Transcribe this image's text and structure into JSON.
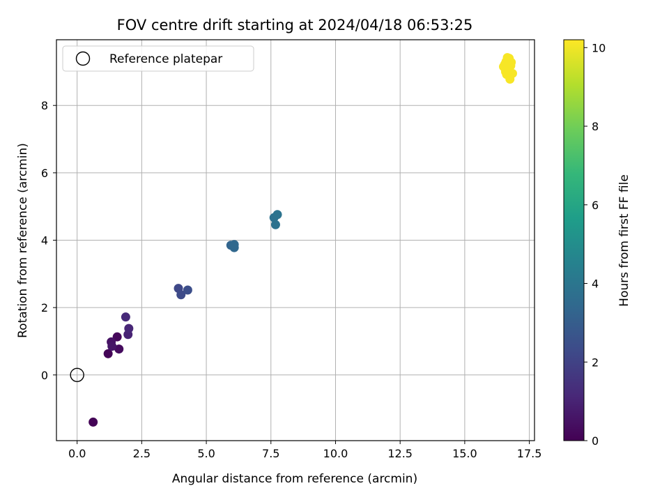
{
  "chart_data": {
    "type": "scatter",
    "title": "FOV centre drift starting at 2024/04/18 06:53:25",
    "xlabel": "Angular distance from reference (arcmin)",
    "ylabel": "Rotation from reference (arcmin)",
    "xlim": [
      -0.8,
      17.7
    ],
    "ylim": [
      -1.95,
      9.95
    ],
    "xticks": [
      0.0,
      2.5,
      5.0,
      7.5,
      10.0,
      12.5,
      15.0,
      17.5
    ],
    "xtick_labels": [
      "0.0",
      "2.5",
      "5.0",
      "7.5",
      "10.0",
      "12.5",
      "15.0",
      "17.5"
    ],
    "yticks": [
      0,
      2,
      4,
      6,
      8
    ],
    "ytick_labels": [
      "0",
      "2",
      "4",
      "6",
      "8"
    ],
    "grid": true,
    "legend": {
      "placement": "top-left",
      "entries": [
        {
          "label": "Reference platepar",
          "marker": "open-circle"
        }
      ]
    },
    "reference_point": {
      "x": 0.0,
      "y": 0.0
    },
    "colorbar": {
      "label": "Hours from first FF file",
      "colormap": "viridis",
      "range": [
        0,
        10.2
      ],
      "ticks": [
        0,
        2,
        4,
        6,
        8,
        10
      ],
      "tick_labels": [
        "0",
        "2",
        "4",
        "6",
        "8",
        "10"
      ]
    },
    "points": [
      {
        "x": 0.62,
        "y": -1.4,
        "c": 0.05
      },
      {
        "x": 1.2,
        "y": 0.63,
        "c": 0.1
      },
      {
        "x": 1.55,
        "y": 1.13,
        "c": 0.2
      },
      {
        "x": 1.62,
        "y": 0.77,
        "c": 0.3
      },
      {
        "x": 1.32,
        "y": 0.98,
        "c": 0.5
      },
      {
        "x": 1.35,
        "y": 0.85,
        "c": 0.6
      },
      {
        "x": 1.97,
        "y": 1.2,
        "c": 1.0
      },
      {
        "x": 2.0,
        "y": 1.38,
        "c": 1.1
      },
      {
        "x": 1.88,
        "y": 1.72,
        "c": 1.2
      },
      {
        "x": 3.92,
        "y": 2.57,
        "c": 2.2
      },
      {
        "x": 4.02,
        "y": 2.38,
        "c": 2.3
      },
      {
        "x": 4.28,
        "y": 2.52,
        "c": 2.4
      },
      {
        "x": 5.95,
        "y": 3.85,
        "c": 3.3
      },
      {
        "x": 6.08,
        "y": 3.78,
        "c": 3.4
      },
      {
        "x": 6.08,
        "y": 3.87,
        "c": 3.45
      },
      {
        "x": 7.62,
        "y": 4.67,
        "c": 3.8
      },
      {
        "x": 7.68,
        "y": 4.46,
        "c": 3.85
      },
      {
        "x": 7.75,
        "y": 4.76,
        "c": 3.9
      },
      {
        "x": 16.5,
        "y": 9.15,
        "c": 10.1
      },
      {
        "x": 16.6,
        "y": 9.3,
        "c": 10.1
      },
      {
        "x": 16.65,
        "y": 9.42,
        "c": 10.1
      },
      {
        "x": 16.72,
        "y": 9.4,
        "c": 10.1
      },
      {
        "x": 16.58,
        "y": 9.0,
        "c": 10.1
      },
      {
        "x": 16.68,
        "y": 9.12,
        "c": 10.1
      },
      {
        "x": 16.78,
        "y": 9.18,
        "c": 10.1
      },
      {
        "x": 16.62,
        "y": 8.92,
        "c": 10.1
      },
      {
        "x": 16.85,
        "y": 8.95,
        "c": 10.1
      },
      {
        "x": 16.75,
        "y": 8.78,
        "c": 10.1
      },
      {
        "x": 16.7,
        "y": 9.05,
        "c": 10.1
      },
      {
        "x": 16.55,
        "y": 9.22,
        "c": 10.1
      },
      {
        "x": 16.8,
        "y": 9.28,
        "c": 10.1
      }
    ]
  }
}
